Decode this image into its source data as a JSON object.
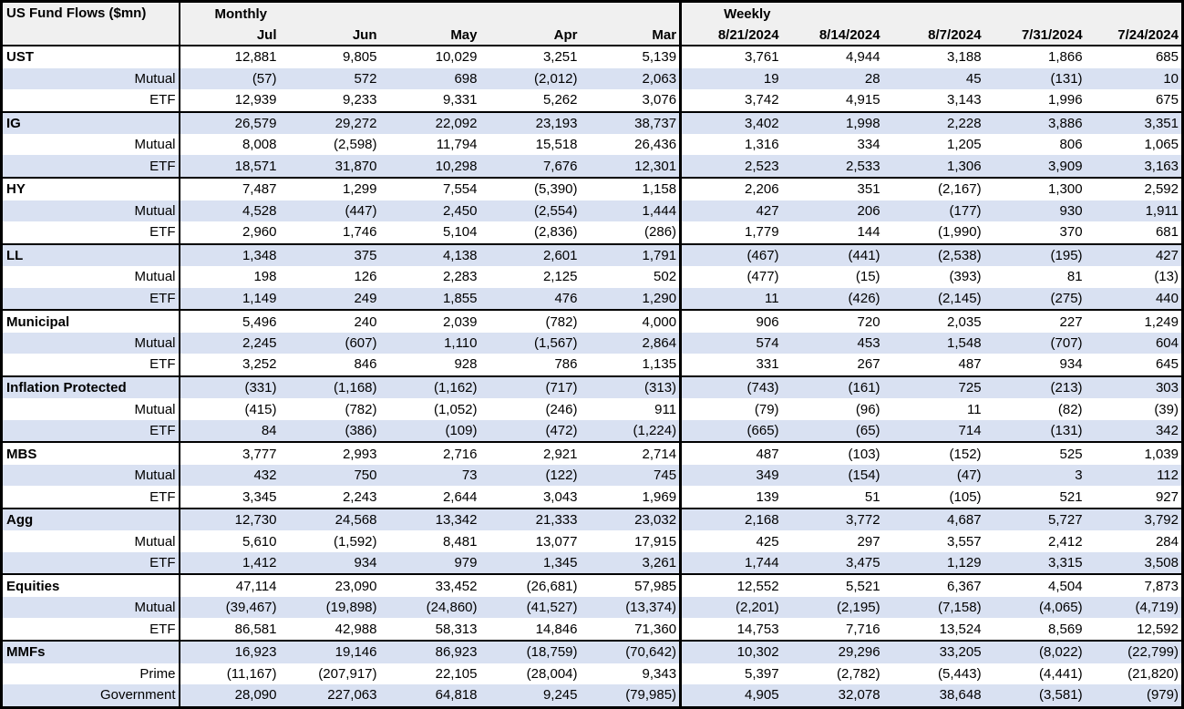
{
  "colors": {
    "band_row_bg": "#d9e1f2",
    "header_bg": "#f0f0f0",
    "border": "#000000",
    "text": "#000000"
  },
  "chart_data": {
    "type": "table",
    "title": "US Fund Flows ($mn)",
    "groups": [
      {
        "label": "Monthly",
        "columns": [
          "Jul",
          "Jun",
          "May",
          "Apr",
          "Mar"
        ]
      },
      {
        "label": "Weekly",
        "columns": [
          "8/21/2024",
          "8/14/2024",
          "8/7/2024",
          "7/31/2024",
          "7/24/2024"
        ]
      }
    ],
    "sections": [
      {
        "rows": [
          {
            "label": "UST",
            "values": [
              "12,881",
              "9,805",
              "10,029",
              "3,251",
              "5,139",
              "3,761",
              "4,944",
              "3,188",
              "1,866",
              "685"
            ]
          },
          {
            "label": "Mutual",
            "values": [
              "(57)",
              "572",
              "698",
              "(2,012)",
              "2,063",
              "19",
              "28",
              "45",
              "(131)",
              "10"
            ]
          },
          {
            "label": "ETF",
            "values": [
              "12,939",
              "9,233",
              "9,331",
              "5,262",
              "3,076",
              "3,742",
              "4,915",
              "3,143",
              "1,996",
              "675"
            ]
          }
        ]
      },
      {
        "rows": [
          {
            "label": "IG",
            "values": [
              "26,579",
              "29,272",
              "22,092",
              "23,193",
              "38,737",
              "3,402",
              "1,998",
              "2,228",
              "3,886",
              "3,351"
            ]
          },
          {
            "label": "Mutual",
            "values": [
              "8,008",
              "(2,598)",
              "11,794",
              "15,518",
              "26,436",
              "1,316",
              "334",
              "1,205",
              "806",
              "1,065"
            ]
          },
          {
            "label": "ETF",
            "values": [
              "18,571",
              "31,870",
              "10,298",
              "7,676",
              "12,301",
              "2,523",
              "2,533",
              "1,306",
              "3,909",
              "3,163"
            ]
          }
        ]
      },
      {
        "rows": [
          {
            "label": "HY",
            "values": [
              "7,487",
              "1,299",
              "7,554",
              "(5,390)",
              "1,158",
              "2,206",
              "351",
              "(2,167)",
              "1,300",
              "2,592"
            ]
          },
          {
            "label": "Mutual",
            "values": [
              "4,528",
              "(447)",
              "2,450",
              "(2,554)",
              "1,444",
              "427",
              "206",
              "(177)",
              "930",
              "1,911"
            ]
          },
          {
            "label": "ETF",
            "values": [
              "2,960",
              "1,746",
              "5,104",
              "(2,836)",
              "(286)",
              "1,779",
              "144",
              "(1,990)",
              "370",
              "681"
            ]
          }
        ]
      },
      {
        "rows": [
          {
            "label": "LL",
            "values": [
              "1,348",
              "375",
              "4,138",
              "2,601",
              "1,791",
              "(467)",
              "(441)",
              "(2,538)",
              "(195)",
              "427"
            ]
          },
          {
            "label": "Mutual",
            "values": [
              "198",
              "126",
              "2,283",
              "2,125",
              "502",
              "(477)",
              "(15)",
              "(393)",
              "81",
              "(13)"
            ]
          },
          {
            "label": "ETF",
            "values": [
              "1,149",
              "249",
              "1,855",
              "476",
              "1,290",
              "11",
              "(426)",
              "(2,145)",
              "(275)",
              "440"
            ]
          }
        ]
      },
      {
        "rows": [
          {
            "label": "Municipal",
            "values": [
              "5,496",
              "240",
              "2,039",
              "(782)",
              "4,000",
              "906",
              "720",
              "2,035",
              "227",
              "1,249"
            ]
          },
          {
            "label": "Mutual",
            "values": [
              "2,245",
              "(607)",
              "1,110",
              "(1,567)",
              "2,864",
              "574",
              "453",
              "1,548",
              "(707)",
              "604"
            ]
          },
          {
            "label": "ETF",
            "values": [
              "3,252",
              "846",
              "928",
              "786",
              "1,135",
              "331",
              "267",
              "487",
              "934",
              "645"
            ]
          }
        ]
      },
      {
        "rows": [
          {
            "label": "Inflation Protected",
            "values": [
              "(331)",
              "(1,168)",
              "(1,162)",
              "(717)",
              "(313)",
              "(743)",
              "(161)",
              "725",
              "(213)",
              "303"
            ]
          },
          {
            "label": "Mutual",
            "values": [
              "(415)",
              "(782)",
              "(1,052)",
              "(246)",
              "911",
              "(79)",
              "(96)",
              "11",
              "(82)",
              "(39)"
            ]
          },
          {
            "label": "ETF",
            "values": [
              "84",
              "(386)",
              "(109)",
              "(472)",
              "(1,224)",
              "(665)",
              "(65)",
              "714",
              "(131)",
              "342"
            ]
          }
        ]
      },
      {
        "rows": [
          {
            "label": "MBS",
            "values": [
              "3,777",
              "2,993",
              "2,716",
              "2,921",
              "2,714",
              "487",
              "(103)",
              "(152)",
              "525",
              "1,039"
            ]
          },
          {
            "label": "Mutual",
            "values": [
              "432",
              "750",
              "73",
              "(122)",
              "745",
              "349",
              "(154)",
              "(47)",
              "3",
              "112"
            ]
          },
          {
            "label": "ETF",
            "values": [
              "3,345",
              "2,243",
              "2,644",
              "3,043",
              "1,969",
              "139",
              "51",
              "(105)",
              "521",
              "927"
            ]
          }
        ]
      },
      {
        "rows": [
          {
            "label": "Agg",
            "values": [
              "12,730",
              "24,568",
              "13,342",
              "21,333",
              "23,032",
              "2,168",
              "3,772",
              "4,687",
              "5,727",
              "3,792"
            ]
          },
          {
            "label": "Mutual",
            "values": [
              "5,610",
              "(1,592)",
              "8,481",
              "13,077",
              "17,915",
              "425",
              "297",
              "3,557",
              "2,412",
              "284"
            ]
          },
          {
            "label": "ETF",
            "values": [
              "1,412",
              "934",
              "979",
              "1,345",
              "3,261",
              "1,744",
              "3,475",
              "1,129",
              "3,315",
              "3,508"
            ]
          }
        ]
      },
      {
        "rows": [
          {
            "label": "Equities",
            "values": [
              "47,114",
              "23,090",
              "33,452",
              "(26,681)",
              "57,985",
              "12,552",
              "5,521",
              "6,367",
              "4,504",
              "7,873"
            ]
          },
          {
            "label": "Mutual",
            "values": [
              "(39,467)",
              "(19,898)",
              "(24,860)",
              "(41,527)",
              "(13,374)",
              "(2,201)",
              "(2,195)",
              "(7,158)",
              "(4,065)",
              "(4,719)"
            ]
          },
          {
            "label": "ETF",
            "values": [
              "86,581",
              "42,988",
              "58,313",
              "14,846",
              "71,360",
              "14,753",
              "7,716",
              "13,524",
              "8,569",
              "12,592"
            ]
          }
        ]
      },
      {
        "rows": [
          {
            "label": "MMFs",
            "values": [
              "16,923",
              "19,146",
              "86,923",
              "(18,759)",
              "(70,642)",
              "10,302",
              "29,296",
              "33,205",
              "(8,022)",
              "(22,799)"
            ]
          },
          {
            "label": "Prime",
            "values": [
              "(11,167)",
              "(207,917)",
              "22,105",
              "(28,004)",
              "9,343",
              "5,397",
              "(2,782)",
              "(5,443)",
              "(4,441)",
              "(21,820)"
            ]
          },
          {
            "label": "Government",
            "values": [
              "28,090",
              "227,063",
              "64,818",
              "9,245",
              "(79,985)",
              "4,905",
              "32,078",
              "38,648",
              "(3,581)",
              "(979)"
            ]
          }
        ]
      }
    ]
  }
}
